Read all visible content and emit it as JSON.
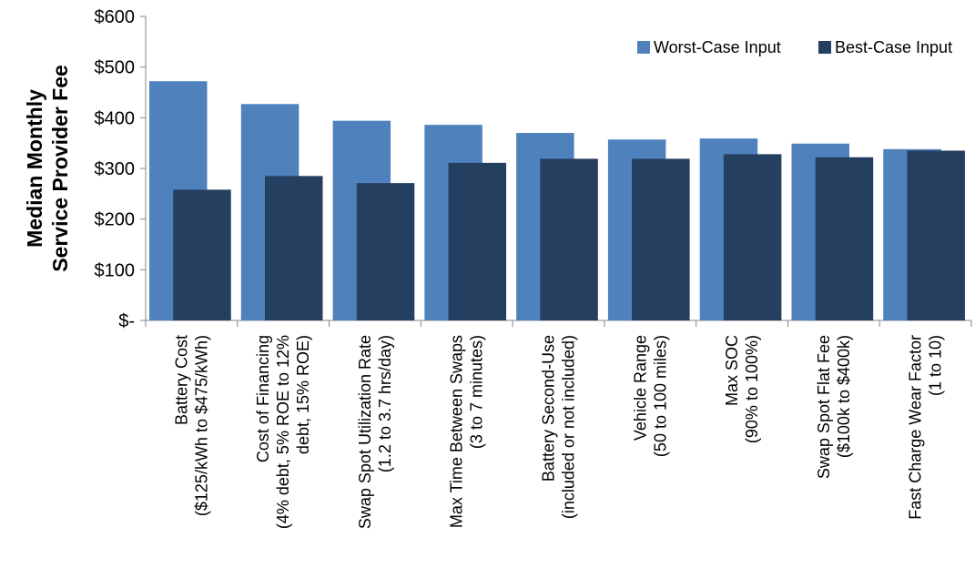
{
  "chart_data": {
    "type": "bar",
    "title": "",
    "xlabel": "",
    "ylabel_lines": [
      "Median Monthly",
      "Service Provider Fee"
    ],
    "ylim": [
      0,
      600
    ],
    "yticks": [
      0,
      100,
      200,
      300,
      400,
      500,
      600
    ],
    "ytick_labels": [
      "$-",
      "$100",
      "$200",
      "$300",
      "$400",
      "$500",
      "$600"
    ],
    "categories": [
      [
        "Battery Cost",
        "($125/kWh to $475/kWh)"
      ],
      [
        "Cost of Financing",
        "(4% debt, 5% ROE to 12%",
        "debt, 15% ROE)"
      ],
      [
        "Swap Spot Utilization Rate",
        "(1.2 to 3.7 hrs/day)"
      ],
      [
        "Max Time Between Swaps",
        "(3 to 7 minutes)"
      ],
      [
        "Battery Second-Use",
        "(included or not included)"
      ],
      [
        "Vehicle Range",
        "(50 to 100 miles)"
      ],
      [
        "Max SOC",
        "(90% to 100%)"
      ],
      [
        "Swap Spot Flat Fee",
        "($100k to $400k)"
      ],
      [
        "Fast Charge Wear Factor",
        "(1 to 10)"
      ]
    ],
    "series": [
      {
        "name": "Worst-Case Input",
        "color": "#4f81bd",
        "values": [
          472,
          427,
          394,
          386,
          370,
          357,
          359,
          349,
          338
        ]
      },
      {
        "name": "Best-Case Input",
        "color": "#243f60",
        "values": [
          258,
          285,
          271,
          311,
          319,
          319,
          328,
          322,
          335
        ]
      }
    ],
    "grid": false,
    "legend_position": "top-right"
  }
}
